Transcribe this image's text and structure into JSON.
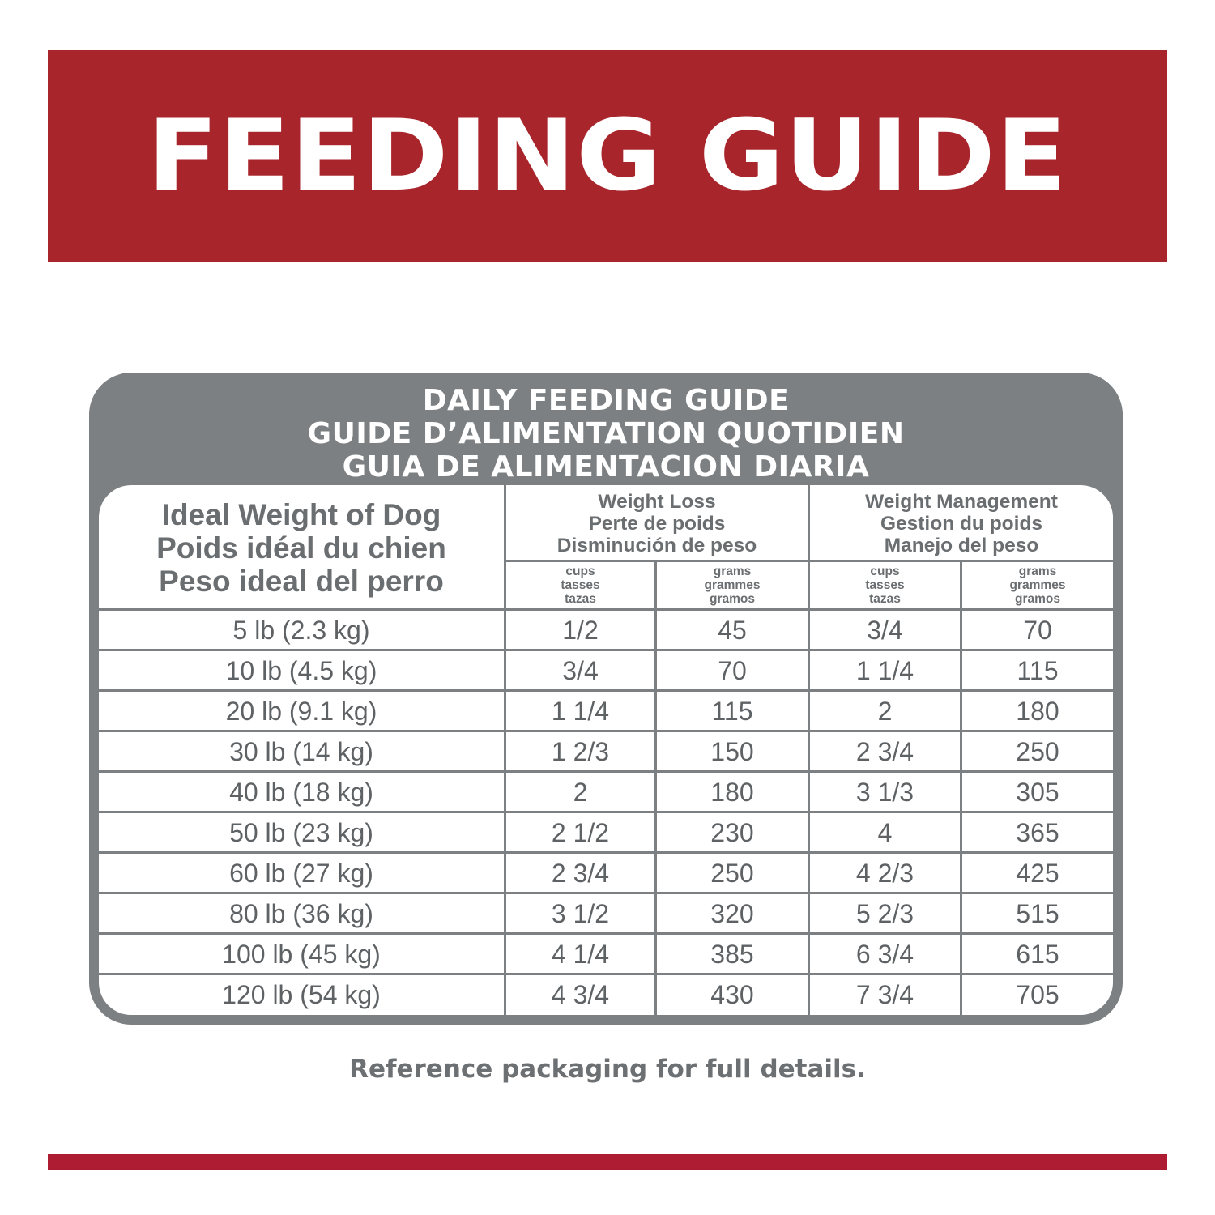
{
  "banner": {
    "title": "FEEDING GUIDE"
  },
  "panel": {
    "title_lines": [
      "DAILY FEEDING GUIDE",
      "GUIDE D’ALIMENTATION QUOTIDIEN",
      "GUIA DE ALIMENTACION DIARIA"
    ]
  },
  "table": {
    "ideal_header": [
      "Ideal Weight of Dog",
      "Poids idéal du chien",
      "Peso ideal del perro"
    ],
    "groups": [
      {
        "lines": [
          "Weight Loss",
          "Perte de poids",
          "Disminución de peso"
        ]
      },
      {
        "lines": [
          "Weight Management",
          "Gestion du poids",
          "Manejo del peso"
        ]
      }
    ],
    "units": [
      [
        "cups",
        "tasses",
        "tazas"
      ],
      [
        "grams",
        "grammes",
        "gramos"
      ],
      [
        "cups",
        "tasses",
        "tazas"
      ],
      [
        "grams",
        "grammes",
        "gramos"
      ]
    ],
    "rows": [
      [
        "5 lb (2.3 kg)",
        "1/2",
        "45",
        "3/4",
        "70"
      ],
      [
        "10 lb (4.5 kg)",
        "3/4",
        "70",
        "1 1/4",
        "115"
      ],
      [
        "20 lb (9.1 kg)",
        "1 1/4",
        "115",
        "2",
        "180"
      ],
      [
        "30 lb (14 kg)",
        "1 2/3",
        "150",
        "2 3/4",
        "250"
      ],
      [
        "40 lb (18 kg)",
        "2",
        "180",
        "3 1/3",
        "305"
      ],
      [
        "50 lb (23 kg)",
        "2 1/2",
        "230",
        "4",
        "365"
      ],
      [
        "60 lb (27 kg)",
        "2 3/4",
        "250",
        "4 2/3",
        "425"
      ],
      [
        "80 lb (36 kg)",
        "3 1/2",
        "320",
        "5 2/3",
        "515"
      ],
      [
        "100 lb (45 kg)",
        "4 1/4",
        "385",
        "6 3/4",
        "615"
      ],
      [
        "120 lb (54 kg)",
        "4 3/4",
        "430",
        "7 3/4",
        "705"
      ]
    ]
  },
  "footer": {
    "note": "Reference packaging for full details."
  },
  "colors": {
    "banner": "#a9252c",
    "panel": "#7c8082",
    "bottom_bar": "#ae1c34"
  }
}
